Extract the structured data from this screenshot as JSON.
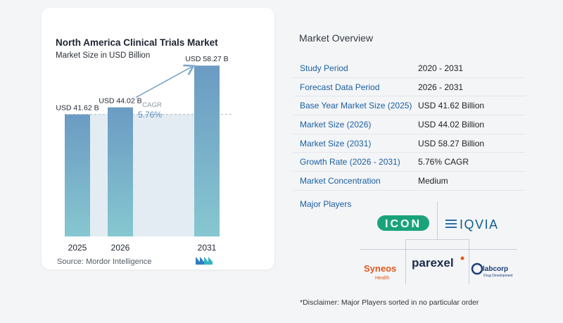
{
  "chart_data": {
    "type": "bar",
    "title": "North America Clinical Trials Market",
    "subtitle": "Market Size in USD Billion",
    "categories": [
      "2025",
      "2026",
      "2031"
    ],
    "values": [
      41.62,
      44.02,
      58.27
    ],
    "value_labels": [
      "USD 41.62 B",
      "USD 44.02 B",
      "USD 58.27 B"
    ],
    "cagr_label": "CAGR",
    "cagr_value": "5.76%",
    "ylim": [
      0,
      60
    ],
    "grid": false,
    "colors": {
      "bar_top": "#6b9bc3",
      "bar_bottom": "#86c7d0",
      "shade": "#e3ecf3",
      "arrow": "#7aa6c9",
      "cagr_text": "#5b8fc0"
    }
  },
  "source": "Source:  Mordor Intelligence",
  "overview": {
    "title": "Market Overview",
    "rows": [
      {
        "label": "Study Period",
        "value": "2020 - 2031"
      },
      {
        "label": "Forecast Data Period",
        "value": "2026 - 2031"
      },
      {
        "label": "Base Year Market Size (2025)",
        "value": "USD 41.62 Billion"
      },
      {
        "label": "Market Size (2026)",
        "value": "USD 44.02 Billion"
      },
      {
        "label": "Market Size (2031)",
        "value": "USD 58.27 Billion"
      },
      {
        "label": "Growth Rate (2026 - 2031)",
        "value": "5.76% CAGR"
      },
      {
        "label": "Market Concentration",
        "value": "Medium"
      }
    ],
    "players_label": "Major Players",
    "players": {
      "icon": "ICON",
      "iqvia": "IQVIA",
      "syneos": "Syneos",
      "syneos_sub": "Health",
      "parexel": "parexel",
      "labcorp": "labcorp",
      "labcorp_sub": "Drug Development"
    },
    "disclaimer": "*Disclaimer: Major Players sorted in no particular order"
  }
}
